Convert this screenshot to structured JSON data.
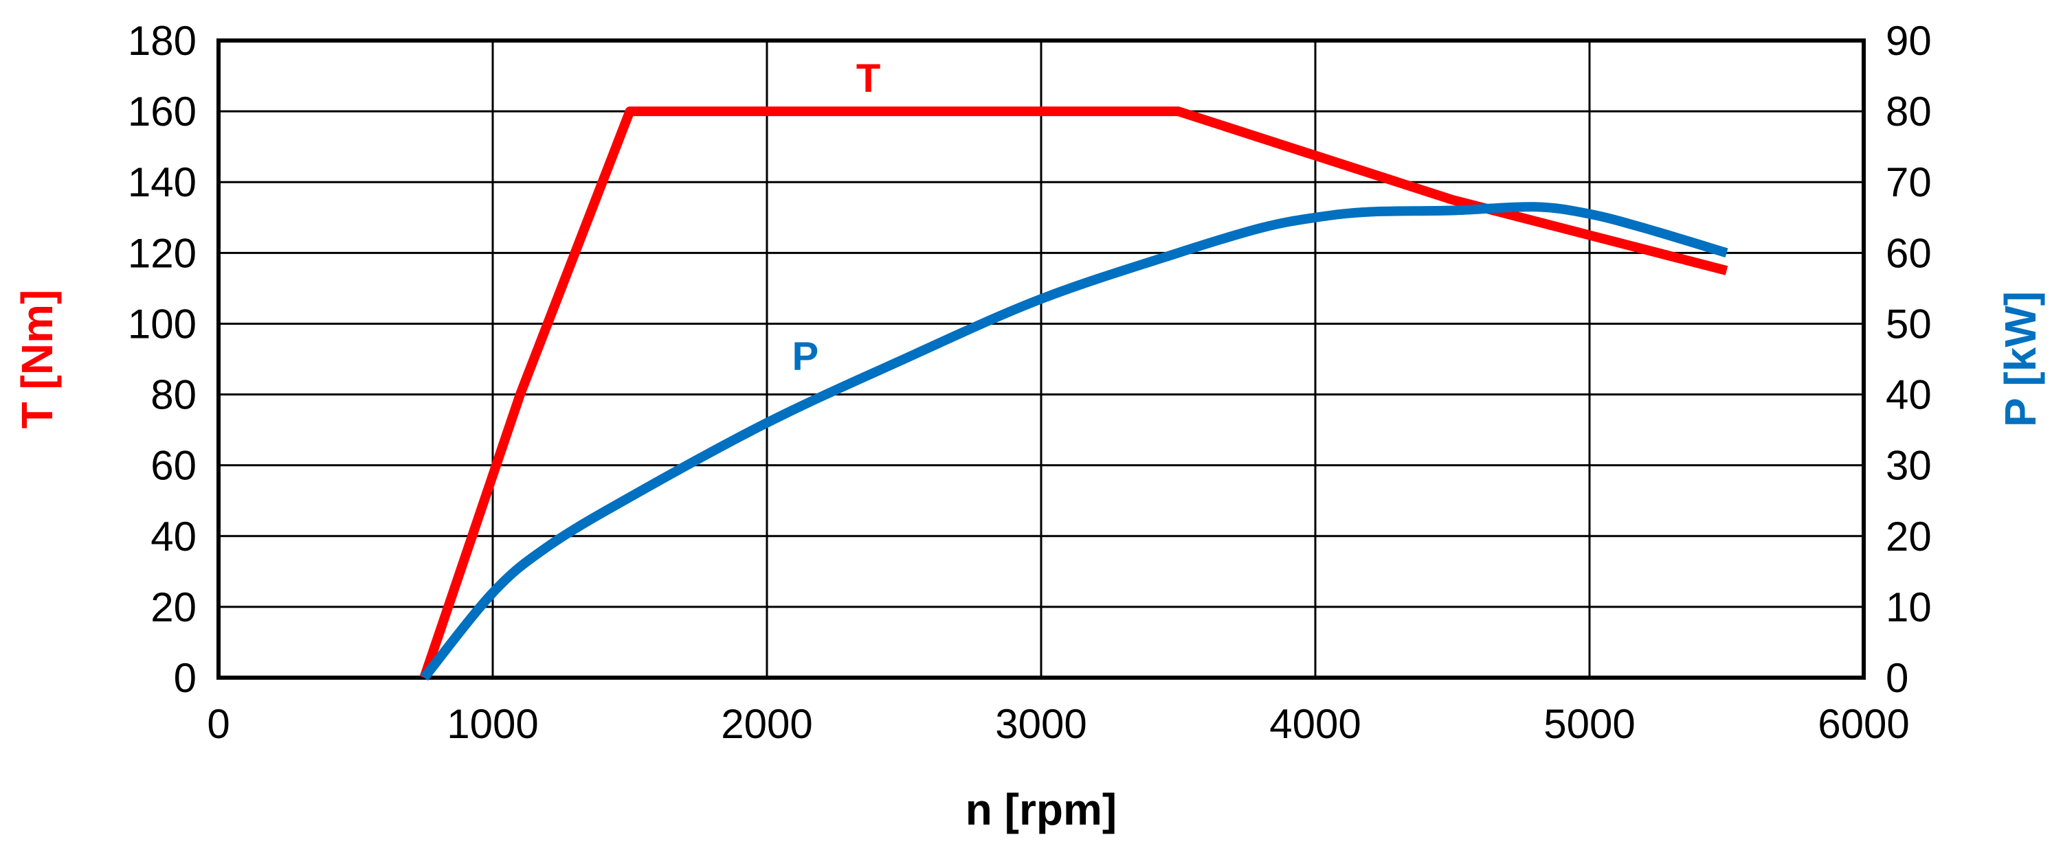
{
  "chart_data": {
    "type": "line",
    "title": "",
    "xlabel": "n [rpm]",
    "ylabel_left": "T [Nm]",
    "ylabel_right": "P [kW]",
    "xlim": [
      0,
      6000
    ],
    "ylim_left": [
      0,
      180
    ],
    "ylim_right": [
      0,
      90
    ],
    "x_ticks": [
      "0",
      "1000",
      "2000",
      "3000",
      "4000",
      "5000",
      "6000"
    ],
    "y_left_ticks": [
      "0",
      "20",
      "40",
      "60",
      "80",
      "100",
      "120",
      "140",
      "160",
      "180"
    ],
    "y_right_ticks": [
      "0",
      "10",
      "20",
      "30",
      "40",
      "50",
      "60",
      "70",
      "80",
      "90"
    ],
    "grid": true,
    "series": [
      {
        "name": "T",
        "axis": "left",
        "color": "#ff0000",
        "points": [
          [
            750,
            0
          ],
          [
            1100,
            80
          ],
          [
            1500,
            160
          ],
          [
            3500,
            160
          ],
          [
            4500,
            135
          ],
          [
            5500,
            115
          ]
        ]
      },
      {
        "name": "P",
        "axis": "right",
        "color": "#0070c0",
        "points": [
          [
            750,
            0
          ],
          [
            1000,
            12
          ],
          [
            1200,
            18.5
          ],
          [
            1500,
            25.5
          ],
          [
            2000,
            36
          ],
          [
            2500,
            45
          ],
          [
            3000,
            53.5
          ],
          [
            3500,
            60
          ],
          [
            3800,
            63.5
          ],
          [
            4000,
            65
          ],
          [
            4200,
            65.8
          ],
          [
            4500,
            66
          ],
          [
            4800,
            66.5
          ],
          [
            5000,
            65.5
          ],
          [
            5200,
            63.5
          ],
          [
            5500,
            60
          ]
        ]
      }
    ]
  }
}
